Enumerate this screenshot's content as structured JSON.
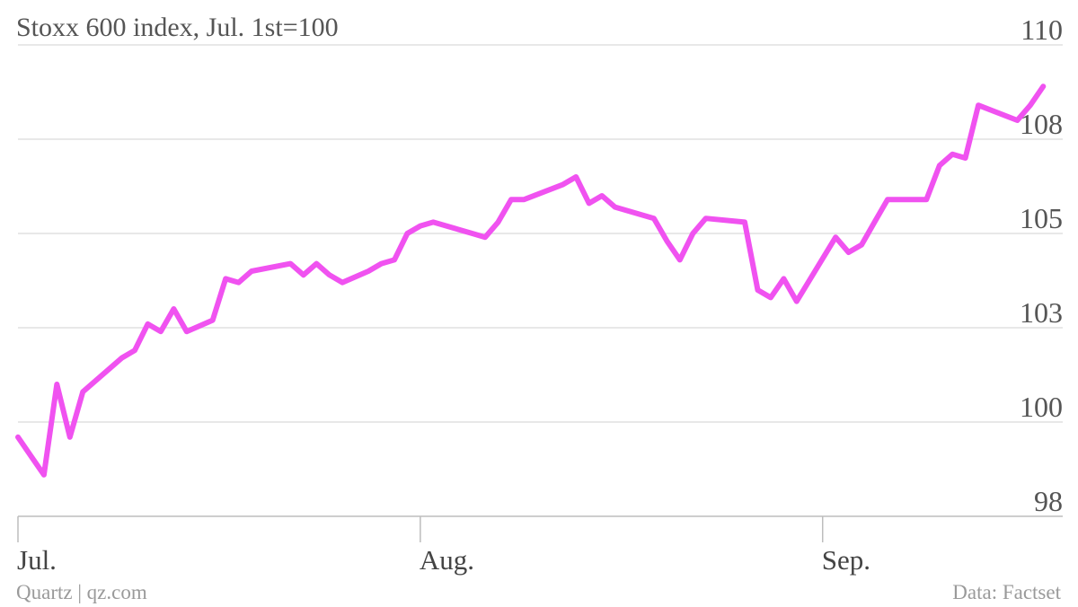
{
  "chart_data": {
    "type": "line",
    "title": "Stoxx 600 index, Jul. 1st=100",
    "xlabel": "",
    "ylabel": "",
    "yticks": [
      "110",
      "108",
      "105",
      "103",
      "100",
      "98"
    ],
    "xticks": [
      "Jul.",
      "Aug.",
      "Sep."
    ],
    "ylim": [
      97.5,
      110.0
    ],
    "x_start": "Jul. 1",
    "grid": true,
    "series": [
      {
        "name": "",
        "color": "#f052f0",
        "x": [
          "Jul. 1",
          "Jul. 2",
          "Jul. 3",
          "Jul. 4",
          "Jul. 5",
          "Jul. 6",
          "Jul. 9",
          "Jul. 10",
          "Jul. 11",
          "Jul. 12",
          "Jul. 13",
          "Jul. 14",
          "Jul. 16",
          "Jul. 17",
          "Jul. 18",
          "Jul. 19",
          "Jul. 22",
          "Jul. 23",
          "Jul. 24",
          "Jul. 25",
          "Jul. 26",
          "Jul. 28",
          "Jul. 29",
          "Jul. 30",
          "Jul. 31",
          "Aug. 1",
          "Aug. 2",
          "Aug. 5",
          "Aug. 6",
          "Aug. 7",
          "Aug. 8",
          "Aug. 9",
          "Aug. 12",
          "Aug. 13",
          "Aug. 14",
          "Aug. 15",
          "Aug. 16",
          "Aug. 19",
          "Aug. 20",
          "Aug. 21",
          "Aug. 22",
          "Aug. 23",
          "Aug. 26",
          "Aug. 27",
          "Aug. 28",
          "Aug. 29",
          "Aug. 30",
          "Sep. 2",
          "Sep. 3",
          "Sep. 4",
          "Sep. 5",
          "Sep. 6",
          "Sep. 9",
          "Sep. 10",
          "Sep. 11",
          "Sep. 12",
          "Sep. 13",
          "Sep. 16",
          "Sep. 17",
          "Sep. 18"
        ],
        "y": [
          99.6,
          99.1,
          98.6,
          101.0,
          99.6,
          100.8,
          101.7,
          101.9,
          102.6,
          102.4,
          103.0,
          102.4,
          102.7,
          103.8,
          103.7,
          104.0,
          104.2,
          103.9,
          104.2,
          103.9,
          103.7,
          104.0,
          104.2,
          104.3,
          105.0,
          105.2,
          105.3,
          105.0,
          104.9,
          105.3,
          105.9,
          105.9,
          106.3,
          106.5,
          105.8,
          106.0,
          105.7,
          105.4,
          104.8,
          104.3,
          105.0,
          105.4,
          105.3,
          103.5,
          103.3,
          103.8,
          103.2,
          104.9,
          104.5,
          104.7,
          105.3,
          105.9,
          105.9,
          106.8,
          107.1,
          107.0,
          108.4,
          108.0,
          108.4,
          108.9
        ]
      }
    ]
  },
  "footer": {
    "source_left": "Quartz | qz.com",
    "source_right": "Data: Factset"
  }
}
